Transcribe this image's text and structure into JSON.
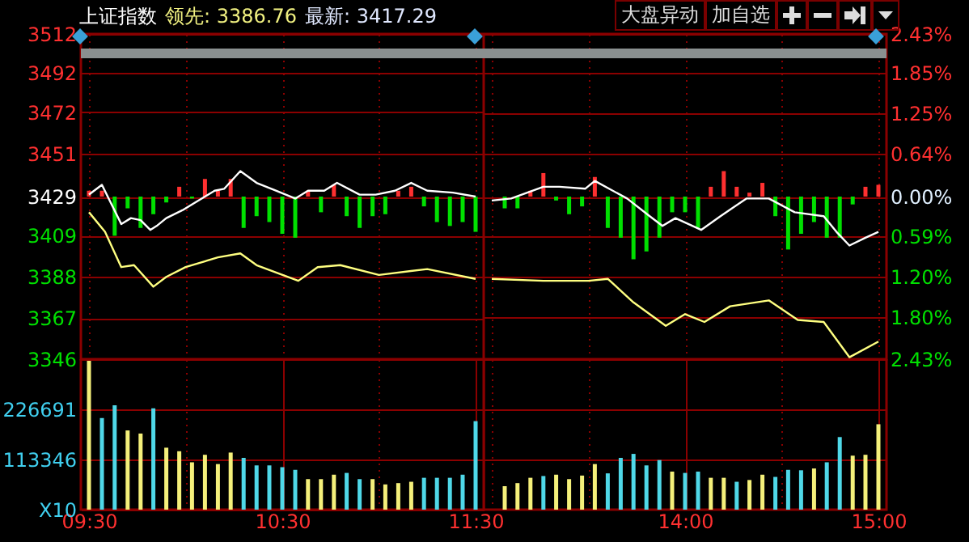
{
  "chart_data": [
    {
      "type": "line",
      "title": "上证指数",
      "annotations": [
        "领先: 3386.76",
        "最新: 3417.29",
        "大盘异动",
        "加自选"
      ],
      "xlim": [
        9.5,
        11.5
      ],
      "xticks": [
        {
          "value": 9.5,
          "label": null
        },
        {
          "value": 10,
          "label": null
        },
        {
          "value": 10.5,
          "label": null
        },
        {
          "value": 11,
          "label": null
        },
        {
          "value": 11.5,
          "label": null
        }
      ],
      "ylim": [
        3346,
        3512
      ],
      "yticks": [
        3346,
        3367,
        3388,
        3409,
        3429,
        3451,
        3472,
        3492,
        3512
      ],
      "grid": true,
      "tick_labels": "y",
      "series": [
        {
          "type": "bar",
          "x": [
            9.5,
            9.567,
            9.633,
            9.7,
            9.767,
            9.833,
            9.9,
            9.967,
            10.033,
            10.1,
            10.167,
            10.233,
            10.3,
            10.367,
            10.433,
            10.5,
            10.567,
            10.633,
            10.7,
            10.767,
            10.833,
            10.9,
            10.967,
            11.033,
            11.1,
            11.167,
            11.233,
            11.3,
            11.367,
            11.433,
            11.5
          ],
          "base": [
            3429,
            3429,
            3429,
            3429,
            3429,
            3429,
            3429,
            3429,
            3429,
            3429,
            3429,
            3429,
            3429,
            3429,
            3429,
            3429,
            3429,
            3429,
            3429,
            3429,
            3429,
            3429,
            3429,
            3429,
            3429,
            3429,
            3429,
            3429,
            3429,
            3429,
            3429
          ],
          "values": [
            3,
            3,
            -20,
            -6,
            -16,
            -9,
            -3,
            5,
            -1,
            9,
            3,
            9,
            -16,
            -10,
            -13,
            -19,
            -21,
            3,
            -8,
            6,
            -10,
            -16,
            -10,
            -9,
            3,
            5,
            -5,
            -13,
            -15,
            -13,
            -18
          ],
          "colors": [
            "#ff3030",
            "#ff3030",
            "#00e000",
            "#00e000",
            "#00e000",
            "#00e000",
            "#00e000",
            "#ff3030",
            "#00e000",
            "#ff3030",
            "#ff3030",
            "#ff3030",
            "#00e000",
            "#00e000",
            "#00e000",
            "#00e000",
            "#00e000",
            "#ff3030",
            "#00e000",
            "#ff3030",
            "#00e000",
            "#00e000",
            "#00e000",
            "#00e000",
            "#ff3030",
            "#ff3030",
            "#00e000",
            "#00e000",
            "#00e000",
            "#00e000",
            "#00e000"
          ]
        },
        {
          "type": "line",
          "color": "#ffffff",
          "x": [
            9.5,
            9.567,
            9.667,
            9.717,
            9.767,
            9.817,
            9.85,
            9.9,
            9.983,
            10.1,
            10.15,
            10.2,
            10.283,
            10.367,
            10.467,
            10.567,
            10.633,
            10.717,
            10.783,
            10.9,
            10.983,
            11.083,
            11.167,
            11.25,
            11.383,
            11.5
          ],
          "values": [
            3430,
            3435,
            3415,
            3418,
            3417,
            3412,
            3414,
            3418,
            3422,
            3429,
            3432,
            3433,
            3442,
            3436,
            3432,
            3428,
            3432,
            3432,
            3436,
            3430,
            3430,
            3432,
            3436,
            3432,
            3431,
            3429
          ]
        },
        {
          "type": "line",
          "color": "#ffff80",
          "x": [
            9.5,
            9.583,
            9.667,
            9.733,
            9.833,
            9.9,
            10,
            10.167,
            10.283,
            10.367,
            10.583,
            10.683,
            10.8,
            11,
            11.25,
            11.5
          ],
          "values": [
            3421,
            3411,
            3393,
            3394,
            3383,
            3388,
            3393,
            3398,
            3400,
            3394,
            3386,
            3393,
            3394,
            3389,
            3392,
            3387
          ]
        }
      ]
    },
    {
      "type": "line",
      "xlim": [
        13,
        15
      ],
      "xticks": [
        {
          "value": 13,
          "label": null
        },
        {
          "value": 13.5,
          "label": null
        },
        {
          "value": 14,
          "label": null
        },
        {
          "value": 14.5,
          "label": null
        },
        {
          "value": 15,
          "label": null
        }
      ],
      "ylim": [
        3346,
        3512
      ],
      "y2lim": [
        -2.43,
        2.43
      ],
      "y2ticks": [
        {
          "value": -2.43,
          "label": "2.43%"
        },
        {
          "value": -1.8,
          "label": "1.80%"
        },
        {
          "value": -1.2,
          "label": "1.20%"
        },
        {
          "value": -0.59,
          "label": "0.59%"
        },
        {
          "value": 0,
          "label": "0.00%"
        },
        {
          "value": 0.64,
          "label": "0.64%"
        },
        {
          "value": 1.25,
          "label": "1.25%"
        },
        {
          "value": 1.85,
          "label": "1.85%"
        },
        {
          "value": 2.43,
          "label": "2.43%"
        }
      ],
      "grid": true,
      "tick_labels": "y",
      "series": [
        {
          "type": "bar",
          "x": [
            13.067,
            13.133,
            13.2,
            13.267,
            13.333,
            13.4,
            13.467,
            13.533,
            13.6,
            13.667,
            13.733,
            13.8,
            13.867,
            13.933,
            14,
            14.067,
            14.133,
            14.2,
            14.267,
            14.333,
            14.4,
            14.467,
            14.533,
            14.6,
            14.667,
            14.733,
            14.8,
            14.867,
            14.933,
            15
          ],
          "base": [
            3429,
            3429,
            3429,
            3429,
            3429,
            3429,
            3429,
            3429,
            3429,
            3429,
            3429,
            3429,
            3429,
            3429,
            3429,
            3429,
            3429,
            3429,
            3429,
            3429,
            3429,
            3429,
            3429,
            3429,
            3429,
            3429,
            3429,
            3429,
            3429,
            3429
          ],
          "values": [
            -6,
            -6,
            3,
            12,
            -2,
            -9,
            -5,
            10,
            -16,
            -21,
            -32,
            -28,
            -21,
            -8,
            -8,
            -16,
            5,
            13,
            5,
            2,
            7,
            -10,
            -27,
            -19,
            -13,
            -21,
            -21,
            -4,
            5,
            6
          ],
          "colors": [
            "#00e000",
            "#00e000",
            "#ff3030",
            "#ff3030",
            "#00e000",
            "#00e000",
            "#00e000",
            "#ff3030",
            "#00e000",
            "#00e000",
            "#00e000",
            "#00e000",
            "#00e000",
            "#00e000",
            "#00e000",
            "#00e000",
            "#ff3030",
            "#ff3030",
            "#ff3030",
            "#ff3030",
            "#ff3030",
            "#00e000",
            "#00e000",
            "#00e000",
            "#00e000",
            "#00e000",
            "#00e000",
            "#00e000",
            "#ff3030",
            "#ff3030"
          ]
        },
        {
          "type": "line",
          "color": "#ffffff",
          "x": [
            13,
            13.1,
            13.267,
            13.35,
            13.483,
            13.533,
            13.7,
            13.817,
            13.883,
            13.95,
            14.083,
            14.183,
            14.317,
            14.433,
            14.567,
            14.717,
            14.783,
            14.85,
            14.933,
            15
          ],
          "values": [
            3427,
            3428,
            3434,
            3434,
            3433,
            3437,
            3428,
            3419,
            3414,
            3418,
            3412,
            3419,
            3428,
            3428,
            3421,
            3419,
            3411,
            3404,
            3408,
            3411
          ]
        },
        {
          "type": "line",
          "color": "#ffff80",
          "x": [
            13,
            13.267,
            13.5,
            13.6,
            13.733,
            13.9,
            14,
            14.1,
            14.233,
            14.433,
            14.583,
            14.717,
            14.85,
            15
          ],
          "values": [
            3387,
            3386,
            3386,
            3387,
            3375,
            3363,
            3369,
            3365,
            3373,
            3376,
            3366,
            3365,
            3347,
            3355
          ]
        }
      ]
    },
    {
      "type": "bar",
      "x": [
        9.5,
        9.567,
        9.633,
        9.7,
        9.767,
        9.833,
        9.9,
        9.967,
        10.033,
        10.1,
        10.167,
        10.233,
        10.3,
        10.367,
        10.433,
        10.5,
        10.567,
        10.633,
        10.7,
        10.767,
        10.833,
        10.9,
        10.967,
        11.033,
        11.1,
        11.167,
        11.233,
        11.3,
        11.367,
        11.433,
        11.5
      ],
      "values": [
        340000,
        207000,
        236000,
        179000,
        172000,
        229000,
        140000,
        132000,
        107000,
        124000,
        103000,
        129000,
        117000,
        100000,
        100000,
        96000,
        90000,
        69000,
        69000,
        79000,
        83000,
        69000,
        69000,
        57000,
        60000,
        63000,
        72000,
        72000,
        72000,
        79000,
        200000
      ],
      "colors": [
        "#f5f07a",
        "#4fd8e8",
        "#4fd8e8",
        "#f5f07a",
        "#f5f07a",
        "#4fd8e8",
        "#f5f07a",
        "#f5f07a",
        "#f5f07a",
        "#f5f07a",
        "#f5f07a",
        "#f5f07a",
        "#4fd8e8",
        "#4fd8e8",
        "#4fd8e8",
        "#4fd8e8",
        "#4fd8e8",
        "#f5f07a",
        "#f5f07a",
        "#f5f07a",
        "#4fd8e8",
        "#4fd8e8",
        "#f5f07a",
        "#f5f07a",
        "#f5f07a",
        "#f5f07a",
        "#4fd8e8",
        "#4fd8e8",
        "#4fd8e8",
        "#4fd8e8",
        "#4fd8e8"
      ],
      "xlim": [
        9.5,
        11.5
      ],
      "xticks": [
        {
          "value": 9.5,
          "label": "09:30"
        },
        {
          "value": 10,
          "label": null
        },
        {
          "value": 10.5,
          "label": "10:30"
        },
        {
          "value": 11,
          "label": null
        },
        {
          "value": 11.5,
          "label": "11:30"
        }
      ],
      "ylim": [
        0,
        340037
      ],
      "yticks": [
        {
          "value": 0,
          "label": "X10"
        },
        113346,
        226691
      ],
      "grid": true
    },
    {
      "type": "bar",
      "x": [
        13.067,
        13.133,
        13.2,
        13.267,
        13.333,
        13.4,
        13.467,
        13.533,
        13.6,
        13.667,
        13.733,
        13.8,
        13.867,
        13.933,
        14,
        14.067,
        14.133,
        14.2,
        14.267,
        14.333,
        14.4,
        14.467,
        14.533,
        14.6,
        14.667,
        14.733,
        14.8,
        14.867,
        14.933,
        15
      ],
      "values": [
        53000,
        60000,
        72000,
        76000,
        79000,
        69000,
        77000,
        103000,
        82000,
        117000,
        126000,
        100000,
        112000,
        86000,
        83000,
        86000,
        72000,
        72000,
        63000,
        67000,
        79000,
        74000,
        90000,
        89000,
        93000,
        107000,
        164000,
        122000,
        124000,
        193000
      ],
      "colors": [
        "#f5f07a",
        "#f5f07a",
        "#f5f07a",
        "#4fd8e8",
        "#f5f07a",
        "#f5f07a",
        "#f5f07a",
        "#f5f07a",
        "#4fd8e8",
        "#4fd8e8",
        "#4fd8e8",
        "#4fd8e8",
        "#4fd8e8",
        "#f5f07a",
        "#4fd8e8",
        "#4fd8e8",
        "#f5f07a",
        "#f5f07a",
        "#4fd8e8",
        "#f5f07a",
        "#f5f07a",
        "#4fd8e8",
        "#4fd8e8",
        "#4fd8e8",
        "#f5f07a",
        "#4fd8e8",
        "#4fd8e8",
        "#f5f07a",
        "#f5f07a",
        "#f5f07a"
      ],
      "xlim": [
        13,
        15
      ],
      "xticks": [
        {
          "value": 13,
          "label": null
        },
        {
          "value": 13.5,
          "label": null
        },
        {
          "value": 14,
          "label": "14:00"
        },
        {
          "value": 14.5,
          "label": null
        },
        {
          "value": 15,
          "label": "15:00"
        }
      ],
      "ylim": [
        0,
        340037
      ],
      "yticks": [
        113346,
        226691
      ],
      "grid": true,
      "tick_labels": "x"
    }
  ]
}
